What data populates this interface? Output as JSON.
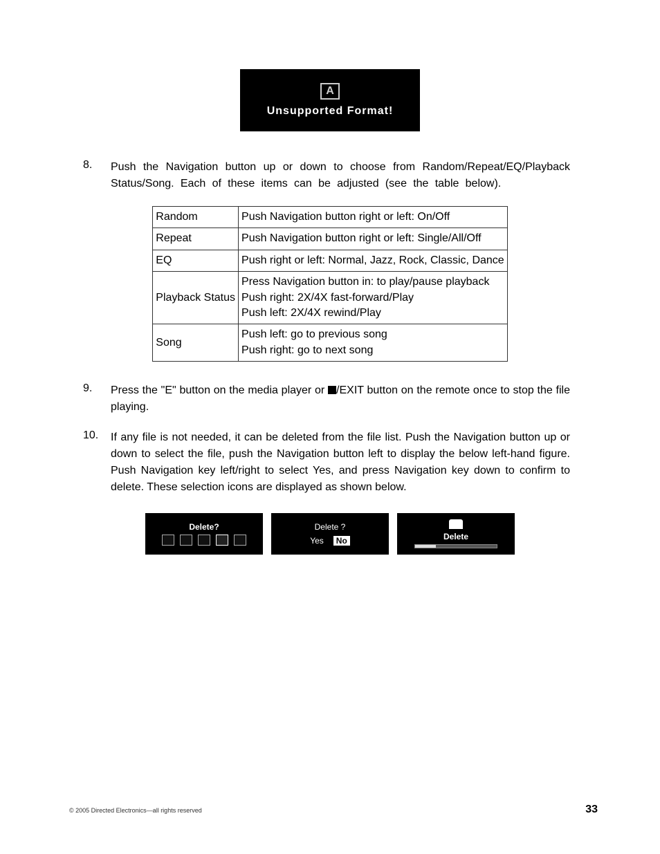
{
  "unsupported": {
    "label": "Unsupported Format!",
    "icon_glyph": "A"
  },
  "item8": {
    "num": "8.",
    "text": "Push the Navigation button up or down to choose from Random/Repeat/EQ/Playback Status/Song. Each of these items can be adjusted (see the table below)."
  },
  "table": {
    "rows": [
      {
        "k": "Random",
        "v": "Push Navigation button right or left: On/Off"
      },
      {
        "k": "Repeat",
        "v": "Push Navigation button right or left: Single/All/Off"
      },
      {
        "k": "EQ",
        "v": "Push right or left: Normal, Jazz, Rock, Classic, Dance"
      },
      {
        "k": "Playback Status",
        "v": "Press Navigation button in: to play/pause playback\nPush right: 2X/4X fast-forward/Play\nPush left: 2X/4X rewind/Play"
      },
      {
        "k": "Song",
        "v": "Push left: go to previous song\nPush right: go to next song"
      }
    ]
  },
  "item9": {
    "num": "9.",
    "pre": "Press the \"E\" button on the media player or ",
    "post": "/EXIT button on the remote once to stop the file playing."
  },
  "item10": {
    "num": "10.",
    "text": "If any file is not needed, it can be deleted from the file list. Push the Navigation button up or down to select the file, push the Navigation button left to display the below left-hand figure. Push Navigation key left/right to select Yes, and press Navigation key down to confirm to delete. These selection icons are displayed as shown below."
  },
  "figures": {
    "f1": {
      "title": "Delete?"
    },
    "f2": {
      "title": "Delete ?",
      "yes": "Yes",
      "no": "No"
    },
    "f3": {
      "title": "Delete"
    }
  },
  "footer": {
    "copyright": "© 2005  Directed Electronics—all rights reserved",
    "page": "33"
  },
  "colors": {
    "bg": "#ffffff",
    "text": "#000000",
    "box_bg": "#000000",
    "box_fg": "#ffffff",
    "border": "#333333"
  }
}
